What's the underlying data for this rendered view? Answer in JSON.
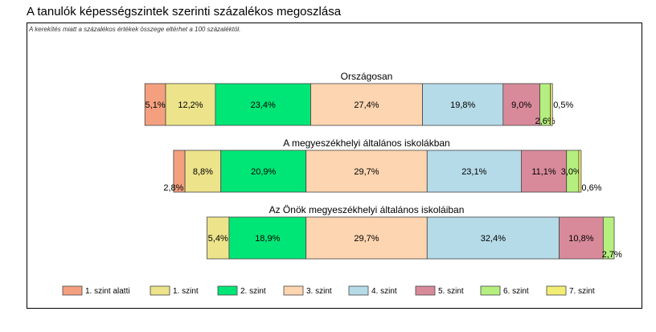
{
  "page": {
    "title": "A tanulók képességszintek szerinti százalékos megoszlása",
    "note": "A kerekítés miatt a százalékos értékek összege eltérhet a 100 százaléktól."
  },
  "colors": {
    "1. szint alatti": "#f4a07f",
    "1. szint": "#ede38b",
    "2. szint": "#00e676",
    "3. szint": "#fdd5b0",
    "4. szint": "#b5dbe8",
    "5. szint": "#d98a9a",
    "6. szint": "#b5ef7f",
    "7. szint": "#f1ee73"
  },
  "chart_data": {
    "type": "bar",
    "orientation": "horizontal-stacked",
    "unit": "%",
    "legend_position": "bottom",
    "grid": false,
    "categories": [
      "1. szint alatti",
      "1. szint",
      "2. szint",
      "3. szint",
      "4. szint",
      "5. szint",
      "6. szint",
      "7. szint"
    ],
    "bars": [
      {
        "title": "Országosan",
        "values": [
          5.1,
          12.2,
          23.4,
          27.4,
          19.8,
          9.0,
          2.6,
          0.5
        ],
        "labels": [
          "5,1%",
          "12,2%",
          "23,4%",
          "27,4%",
          "19,8%",
          "9,0%",
          "2,6%",
          "0,5%"
        ]
      },
      {
        "title": "A megyeszékhelyi általános iskolákban",
        "values": [
          2.8,
          8.8,
          20.9,
          29.7,
          23.1,
          11.1,
          3.0,
          0.6
        ],
        "labels": [
          "2,8%",
          "8,8%",
          "20,9%",
          "29,7%",
          "23,1%",
          "11,1%",
          "3,0%",
          "0,6%"
        ]
      },
      {
        "title": "Az Önök megyeszékhelyi általános iskoláiban",
        "values": [
          0,
          5.4,
          18.9,
          29.7,
          32.4,
          10.8,
          2.7,
          0
        ],
        "labels": [
          "",
          "5,4%",
          "18,9%",
          "29,7%",
          "32,4%",
          "10,8%",
          "2,7%",
          ""
        ]
      }
    ]
  }
}
